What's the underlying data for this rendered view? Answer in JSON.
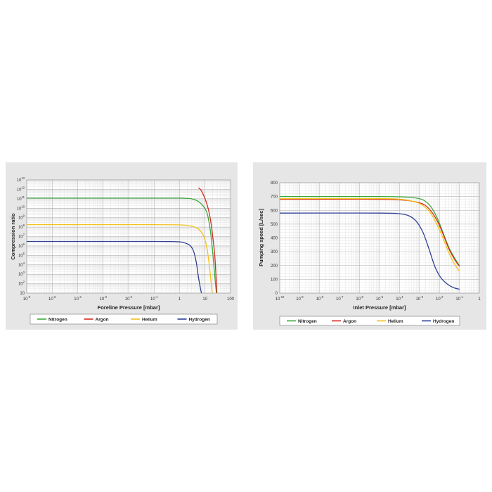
{
  "chart_data": [
    {
      "type": "line",
      "xlabel": "Foreline Pressure [mbar]",
      "ylabel": "Compression ratio",
      "x_scale": "log",
      "y_scale": "log",
      "xlim": [
        1e-06,
        100
      ],
      "ylim": [
        10,
        10000000000000
      ],
      "xticks": [
        {
          "base": "10",
          "exp": "-6",
          "value": 1e-06
        },
        {
          "base": "10",
          "exp": "-5",
          "value": 1e-05
        },
        {
          "base": "10",
          "exp": "-4",
          "value": 0.0001
        },
        {
          "base": "10",
          "exp": "-3",
          "value": 0.001
        },
        {
          "base": "10",
          "exp": "-2",
          "value": 0.01
        },
        {
          "base": "10",
          "exp": "-1",
          "value": 0.1
        },
        {
          "base": "1",
          "exp": "",
          "value": 1
        },
        {
          "base": "10",
          "exp": "",
          "value": 10
        },
        {
          "base": "100",
          "exp": "",
          "value": 100
        }
      ],
      "yticks": [
        {
          "base": "10",
          "exp": "",
          "value": 10
        },
        {
          "base": "10",
          "exp": "2",
          "value": 100
        },
        {
          "base": "10",
          "exp": "3",
          "value": 1000
        },
        {
          "base": "10",
          "exp": "4",
          "value": 10000
        },
        {
          "base": "10",
          "exp": "5",
          "value": 100000
        },
        {
          "base": "10",
          "exp": "6",
          "value": 1000000
        },
        {
          "base": "10",
          "exp": "7",
          "value": 10000000
        },
        {
          "base": "10",
          "exp": "8",
          "value": 100000000
        },
        {
          "base": "10",
          "exp": "9",
          "value": 1000000000
        },
        {
          "base": "10",
          "exp": "10",
          "value": 10000000000
        },
        {
          "base": "10",
          "exp": "11",
          "value": 100000000000
        },
        {
          "base": "10",
          "exp": "12",
          "value": 1000000000000
        },
        {
          "base": "10",
          "exp": "13",
          "value": 10000000000000
        }
      ],
      "grid": true,
      "series": [
        {
          "name": "Nitrogen",
          "color": "#3aa83a",
          "x": [
            1e-06,
            0.1,
            1,
            2,
            3,
            5,
            8,
            12,
            16,
            20,
            25,
            28
          ],
          "y": [
            120000000000.0,
            120000000000.0,
            120000000000.0,
            110000000000.0,
            100000000000.0,
            60000000000.0,
            20000000000.0,
            3000000000.0,
            50000000.0,
            200000.0,
            200,
            10
          ]
        },
        {
          "name": "Argon",
          "color": "#d42a1e",
          "x": [
            5.5,
            7,
            9,
            11,
            14,
            17,
            20,
            24,
            27,
            29
          ],
          "y": [
            1500000000000.0,
            800000000000.0,
            200000000000.0,
            50000000000.0,
            5000000000.0,
            300000000.0,
            10000000.0,
            100000.0,
            500,
            10
          ]
        },
        {
          "name": "Helium",
          "color": "#f2c21b",
          "x": [
            1e-06,
            0.1,
            1,
            2,
            4,
            6,
            9,
            12,
            15,
            17,
            19
          ],
          "y": [
            180000000.0,
            180000000.0,
            170000000.0,
            150000000.0,
            100000000.0,
            50000000.0,
            10000000.0,
            500000.0,
            5000.0,
            200,
            10
          ]
        },
        {
          "name": "Hydrogen",
          "color": "#2e3f96",
          "x": [
            1e-06,
            0.1,
            0.8,
            1.5,
            2.5,
            3.5,
            4.5,
            5.5,
            6.5,
            7.2
          ],
          "y": [
            3000000.0,
            3000000.0,
            2800000.0,
            2200000.0,
            1200000.0,
            300000.0,
            20000.0,
            500,
            40,
            10
          ]
        }
      ]
    },
    {
      "type": "line",
      "xlabel": "Inlet Pressure [mbar]",
      "ylabel": "Pumping speed [L/sec]",
      "x_scale": "log",
      "y_scale": "linear",
      "xlim": [
        1e-10,
        1
      ],
      "ylim": [
        0,
        800
      ],
      "xticks": [
        {
          "base": "10",
          "exp": "-10",
          "value": 1e-10
        },
        {
          "base": "10",
          "exp": "-9",
          "value": 1e-09
        },
        {
          "base": "10",
          "exp": "-8",
          "value": 1e-08
        },
        {
          "base": "10",
          "exp": "-7",
          "value": 1e-07
        },
        {
          "base": "10",
          "exp": "-6",
          "value": 1e-06
        },
        {
          "base": "10",
          "exp": "-5",
          "value": 1e-05
        },
        {
          "base": "10",
          "exp": "-4",
          "value": 0.0001
        },
        {
          "base": "10",
          "exp": "-3",
          "value": 0.001
        },
        {
          "base": "10",
          "exp": "-2",
          "value": 0.01
        },
        {
          "base": "10",
          "exp": "-1",
          "value": 0.1
        },
        {
          "base": "1",
          "exp": "",
          "value": 1
        }
      ],
      "yticks": [
        {
          "base": "0",
          "exp": "",
          "value": 0
        },
        {
          "base": "100",
          "exp": "",
          "value": 100
        },
        {
          "base": "200",
          "exp": "",
          "value": 200
        },
        {
          "base": "300",
          "exp": "",
          "value": 300
        },
        {
          "base": "400",
          "exp": "",
          "value": 400
        },
        {
          "base": "500",
          "exp": "",
          "value": 500
        },
        {
          "base": "600",
          "exp": "",
          "value": 600
        },
        {
          "base": "700",
          "exp": "",
          "value": 700
        },
        {
          "base": "800",
          "exp": "",
          "value": 800
        }
      ],
      "grid": true,
      "series": [
        {
          "name": "Nitrogen",
          "color": "#3aa83a",
          "x": [
            1e-10,
            1e-05,
            0.0001,
            0.0003,
            0.001,
            0.002,
            0.004,
            0.008,
            0.015,
            0.03,
            0.06,
            0.1
          ],
          "y": [
            700,
            700,
            698,
            695,
            685,
            665,
            620,
            540,
            440,
            330,
            250,
            200
          ]
        },
        {
          "name": "Argon",
          "color": "#d42a1e",
          "x": [
            1e-10,
            1e-05,
            0.0001,
            0.0003,
            0.001,
            0.002,
            0.004,
            0.008,
            0.015,
            0.03,
            0.06,
            0.1
          ],
          "y": [
            680,
            680,
            676,
            670,
            655,
            635,
            590,
            520,
            430,
            320,
            240,
            195
          ]
        },
        {
          "name": "Helium",
          "color": "#f2c21b",
          "x": [
            1e-10,
            1e-05,
            0.0001,
            0.0003,
            0.001,
            0.002,
            0.004,
            0.008,
            0.015,
            0.03,
            0.06,
            0.1
          ],
          "y": [
            685,
            685,
            680,
            672,
            650,
            620,
            570,
            490,
            400,
            290,
            205,
            160
          ]
        },
        {
          "name": "Hydrogen",
          "color": "#2e3f96",
          "x": [
            1e-10,
            1e-05,
            0.0001,
            0.0003,
            0.0007,
            0.0015,
            0.003,
            0.006,
            0.012,
            0.025,
            0.05,
            0.1
          ],
          "y": [
            580,
            580,
            575,
            560,
            520,
            440,
            320,
            190,
            110,
            65,
            40,
            28
          ]
        }
      ]
    }
  ]
}
